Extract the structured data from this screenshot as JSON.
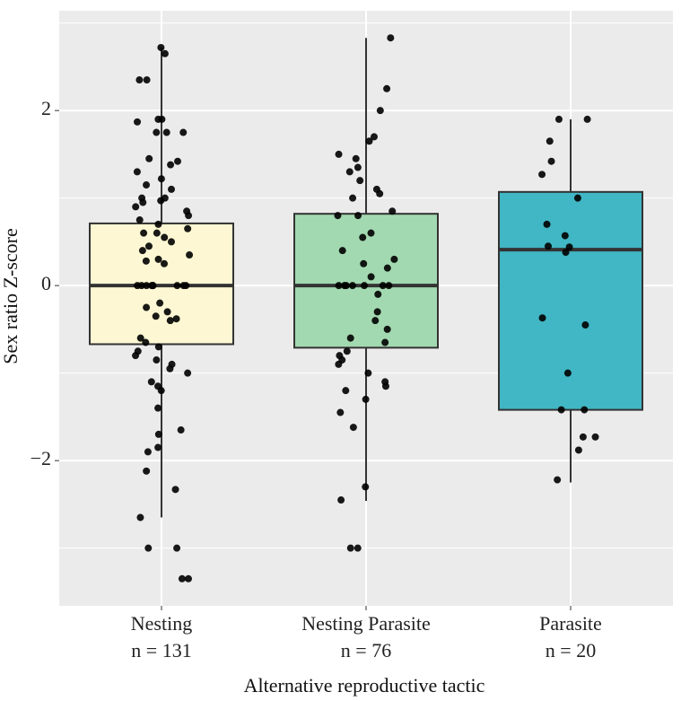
{
  "chart_data": {
    "type": "box",
    "xlabel": "Alternative reproductive tactic",
    "ylabel": "Sex ratio Z-score",
    "categories": [
      "Nesting",
      "Nesting Parasite",
      "Parasite"
    ],
    "n_labels": [
      "n = 131",
      "n = 76",
      "n = 20"
    ],
    "colors": [
      "#fdf8d3",
      "#a3d9b1",
      "#41b6c4"
    ],
    "point_color": "#000000",
    "boxes": [
      {
        "whisker_low": -2.65,
        "q1": -0.67,
        "median": 0,
        "q3": 0.71,
        "whisker_high": 2.72
      },
      {
        "whisker_low": -2.46,
        "q1": -0.71,
        "median": 0,
        "q3": 0.82,
        "whisker_high": 2.83
      },
      {
        "whisker_low": -2.25,
        "q1": -1.42,
        "median": 0.41,
        "q3": 1.07,
        "whisker_high": 1.9
      }
    ],
    "points": [
      [
        2.72,
        2.65,
        2.35,
        2.35,
        1.9,
        1.9,
        1.87,
        1.75,
        1.75,
        1.75,
        1.45,
        1.42,
        1.38,
        1.3,
        1.22,
        1.15,
        1.1,
        1.0,
        1.0,
        0.97,
        0.95,
        0.9,
        0.85,
        0.8,
        0.75,
        0.7,
        0.65,
        0.6,
        0.6,
        0.55,
        0.5,
        0.45,
        0.4,
        0.35,
        0.3,
        0.28,
        0.25,
        0,
        0,
        0,
        0,
        0,
        0,
        0,
        0,
        0,
        -0.2,
        -0.25,
        -0.3,
        -0.35,
        -0.38,
        -0.4,
        -0.6,
        -0.65,
        -0.7,
        -0.75,
        -0.8,
        -0.85,
        -0.9,
        -0.95,
        -1.0,
        -1.1,
        -1.15,
        -1.2,
        -1.4,
        -1.65,
        -1.7,
        -1.85,
        -1.9,
        -2.12,
        -2.33,
        -2.65,
        -3.0,
        -3.0,
        -3.35,
        -3.35
      ],
      [
        2.83,
        2.25,
        2.0,
        1.7,
        1.65,
        1.5,
        1.45,
        1.35,
        1.3,
        1.2,
        1.1,
        1.05,
        1.0,
        0.85,
        0.8,
        0.8,
        0.6,
        0.55,
        0.4,
        0.3,
        0.25,
        0.2,
        0.1,
        0,
        0,
        0,
        0,
        0,
        0,
        0,
        -0.1,
        -0.3,
        -0.4,
        -0.5,
        -0.6,
        -0.65,
        -0.75,
        -0.8,
        -0.85,
        -0.9,
        -1.0,
        -1.1,
        -1.15,
        -1.2,
        -1.3,
        -1.45,
        -1.62,
        -2.3,
        -2.45,
        -3.0,
        -3.0
      ],
      [
        1.9,
        1.9,
        1.65,
        1.42,
        1.27,
        1.0,
        0.7,
        0.57,
        0.45,
        0.44,
        0.38,
        -0.37,
        -0.45,
        -1.0,
        -1.42,
        -1.42,
        -1.73,
        -1.73,
        -1.88,
        -2.22
      ]
    ],
    "ylim": [
      -3.66,
      3.14
    ],
    "yticks": [
      {
        "value": -2,
        "label": "−2"
      },
      0,
      2
    ],
    "minor_yticks": [
      -3,
      -1,
      1,
      3
    ],
    "grid": true
  }
}
